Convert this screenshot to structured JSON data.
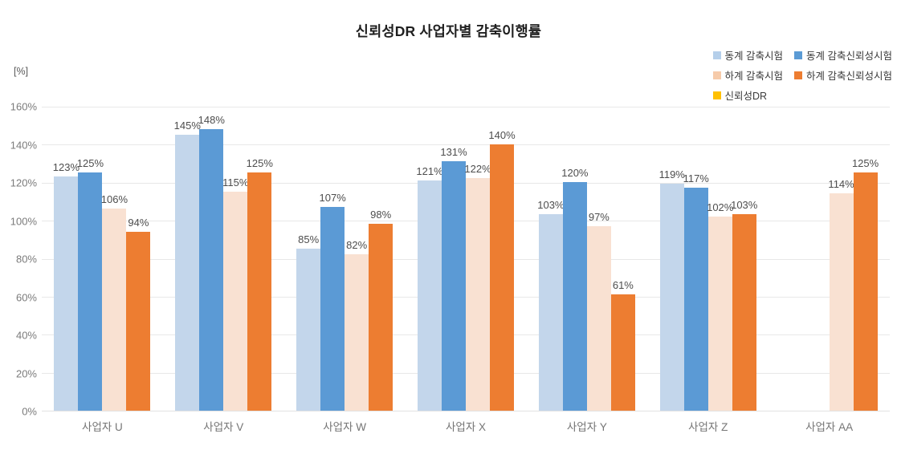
{
  "chart_data": {
    "type": "bar",
    "title": "신뢰성DR 사업자별 감축이행률",
    "unit_label": "[%]",
    "categories": [
      "사업자 U",
      "사업자 V",
      "사업자 W",
      "사업자 X",
      "사업자 Y",
      "사업자 Z",
      "사업자 AA"
    ],
    "series": [
      {
        "name": "동계 감축시험",
        "legend_color": "#B5CFEA",
        "bar_color": "#C3D6EB",
        "values": [
          123,
          145,
          85,
          121,
          103,
          119,
          null
        ]
      },
      {
        "name": "동계 감축신뢰성시험",
        "legend_color": "#5B9BD5",
        "bar_color": "#5B9AD5",
        "values": [
          125,
          148,
          107,
          131,
          120,
          117,
          null
        ]
      },
      {
        "name": "하계 감축시험",
        "legend_color": "#F6CBAA",
        "bar_color": "#F9E1D2",
        "values": [
          106,
          115,
          82,
          122,
          97,
          102,
          114
        ]
      },
      {
        "name": "하계 감축신뢰성시험",
        "legend_color": "#ED7D31",
        "bar_color": "#ED7D31",
        "values": [
          94,
          125,
          98,
          140,
          61,
          103,
          125
        ]
      },
      {
        "name": "신뢰성DR",
        "legend_color": "#FFC000",
        "bar_color": "#FFC000",
        "values": [
          null,
          null,
          null,
          null,
          null,
          null,
          null
        ]
      }
    ],
    "y_ticks": [
      "0%",
      "20%",
      "40%",
      "60%",
      "80%",
      "100%",
      "120%",
      "140%",
      "160%"
    ],
    "ylim": [
      0,
      160
    ],
    "grid": true,
    "legend_position": "top-right",
    "value_label_suffix": "%"
  }
}
